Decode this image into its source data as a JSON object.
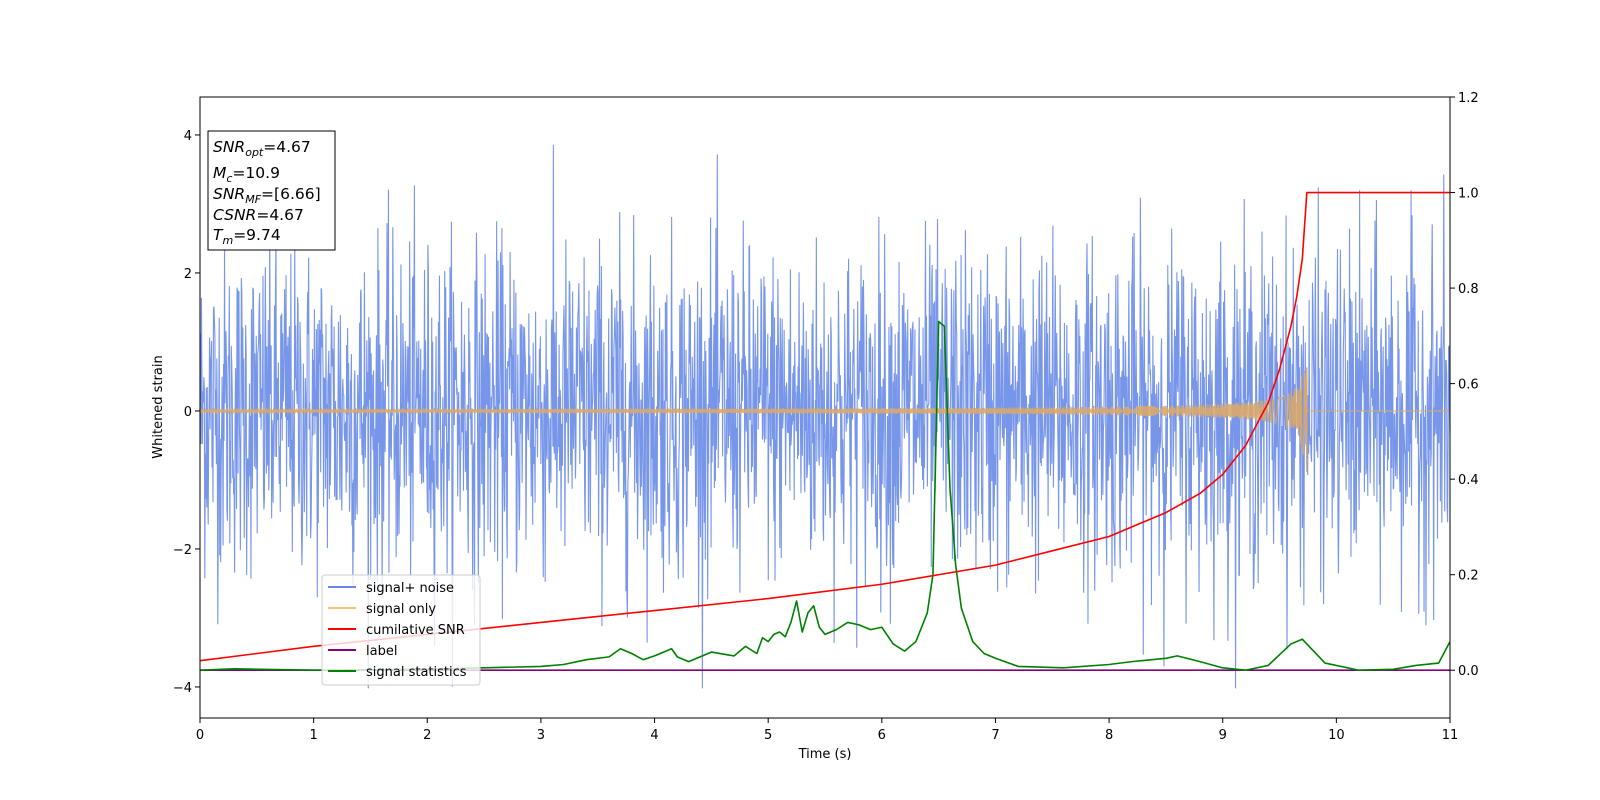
{
  "chart_data": {
    "type": "line",
    "xlabel": "Time (s)",
    "ylabel": "Whitened strain",
    "xlim": [
      0,
      11
    ],
    "ylim_left": [
      -4.45,
      4.55
    ],
    "ylim_right": [
      -0.1,
      1.2
    ],
    "x_ticks": [
      "0",
      "1",
      "2",
      "3",
      "4",
      "5",
      "6",
      "7",
      "8",
      "9",
      "10",
      "11"
    ],
    "y_ticks_left": [
      "−4",
      "−2",
      "0",
      "2",
      "4"
    ],
    "y_ticks_right": [
      "0.0",
      "0.2",
      "0.4",
      "0.6",
      "0.8",
      "1.0",
      "1.2"
    ],
    "annotation": {
      "snr_opt": {
        "sym": "SNR",
        "sub": "opt",
        "val": "=4.67"
      },
      "mc": {
        "sym": "M",
        "sub": "c",
        "val": "=10.9"
      },
      "snr_mf": {
        "sym": "SNR",
        "sub": "MF",
        "val": "=[6.66]"
      },
      "csnr": {
        "sym": "CSNR",
        "val": "=4.67"
      },
      "tm": {
        "sym": "T",
        "sub": "m",
        "val": "=9.74"
      }
    },
    "legend": {
      "placement": "lower-left",
      "entries": [
        {
          "label": "signal+ noise",
          "color": "#6b87e6"
        },
        {
          "label": "signal only",
          "color": "#f5c46b"
        },
        {
          "label": "cumilative SNR",
          "color": "#ff0000"
        },
        {
          "label": "label",
          "color": "#800080"
        },
        {
          "label": "signal statistics",
          "color": "#008000"
        }
      ]
    },
    "series": [
      {
        "name": "signal+ noise",
        "axis": "left",
        "color": "#7090e8",
        "description_values": {
          "x_range": [
            0,
            11
          ],
          "typical_amplitude": 1.9,
          "peak_max": 4.17,
          "peak_min": -4.02
        }
      },
      {
        "name": "signal only",
        "axis": "left",
        "color": "#d9a86a",
        "chirp": {
          "t_merge": 9.74,
          "peak_amplitude": 0.63,
          "min_amplitude": -0.88
        }
      },
      {
        "name": "cumilative SNR",
        "axis": "right",
        "color": "#ff0000",
        "x": [
          0,
          1,
          2,
          3,
          4,
          5,
          6,
          7,
          7.5,
          8,
          8.5,
          8.8,
          9.0,
          9.2,
          9.4,
          9.5,
          9.6,
          9.65,
          9.7,
          9.74,
          9.75,
          11
        ],
        "y": [
          0.02,
          0.05,
          0.075,
          0.1,
          0.125,
          0.15,
          0.18,
          0.22,
          0.25,
          0.28,
          0.33,
          0.37,
          0.41,
          0.47,
          0.56,
          0.63,
          0.72,
          0.78,
          0.86,
          1.0,
          1.0,
          1.0
        ]
      },
      {
        "name": "label",
        "axis": "right",
        "color": "#800080",
        "x": [
          0,
          11
        ],
        "y": [
          0,
          0
        ]
      },
      {
        "name": "signal statistics",
        "axis": "right",
        "color": "#008000",
        "x": [
          0,
          0.3,
          1.0,
          2.0,
          2.5,
          3.0,
          3.2,
          3.4,
          3.6,
          3.7,
          3.8,
          3.9,
          4.0,
          4.15,
          4.2,
          4.3,
          4.5,
          4.7,
          4.8,
          4.9,
          4.95,
          5.0,
          5.05,
          5.1,
          5.15,
          5.2,
          5.25,
          5.3,
          5.35,
          5.4,
          5.45,
          5.5,
          5.6,
          5.7,
          5.8,
          5.9,
          6.0,
          6.1,
          6.2,
          6.3,
          6.4,
          6.45,
          6.5,
          6.55,
          6.6,
          6.65,
          6.7,
          6.8,
          6.9,
          7.0,
          7.2,
          7.6,
          8.0,
          8.2,
          8.5,
          8.6,
          8.8,
          9.0,
          9.2,
          9.4,
          9.6,
          9.7,
          9.9,
          10.2,
          10.5,
          10.7,
          10.9,
          11.0
        ],
        "y": [
          0.0,
          0.003,
          0.0,
          0.002,
          0.005,
          0.008,
          0.012,
          0.022,
          0.028,
          0.045,
          0.035,
          0.022,
          0.03,
          0.045,
          0.028,
          0.018,
          0.038,
          0.03,
          0.05,
          0.035,
          0.068,
          0.06,
          0.075,
          0.08,
          0.07,
          0.1,
          0.145,
          0.08,
          0.12,
          0.135,
          0.09,
          0.075,
          0.085,
          0.1,
          0.095,
          0.085,
          0.09,
          0.055,
          0.04,
          0.06,
          0.12,
          0.2,
          0.73,
          0.72,
          0.38,
          0.22,
          0.13,
          0.06,
          0.035,
          0.025,
          0.008,
          0.005,
          0.012,
          0.018,
          0.025,
          0.03,
          0.018,
          0.005,
          0.0,
          0.01,
          0.055,
          0.065,
          0.015,
          0.0,
          0.002,
          0.01,
          0.015,
          0.06
        ]
      }
    ]
  }
}
